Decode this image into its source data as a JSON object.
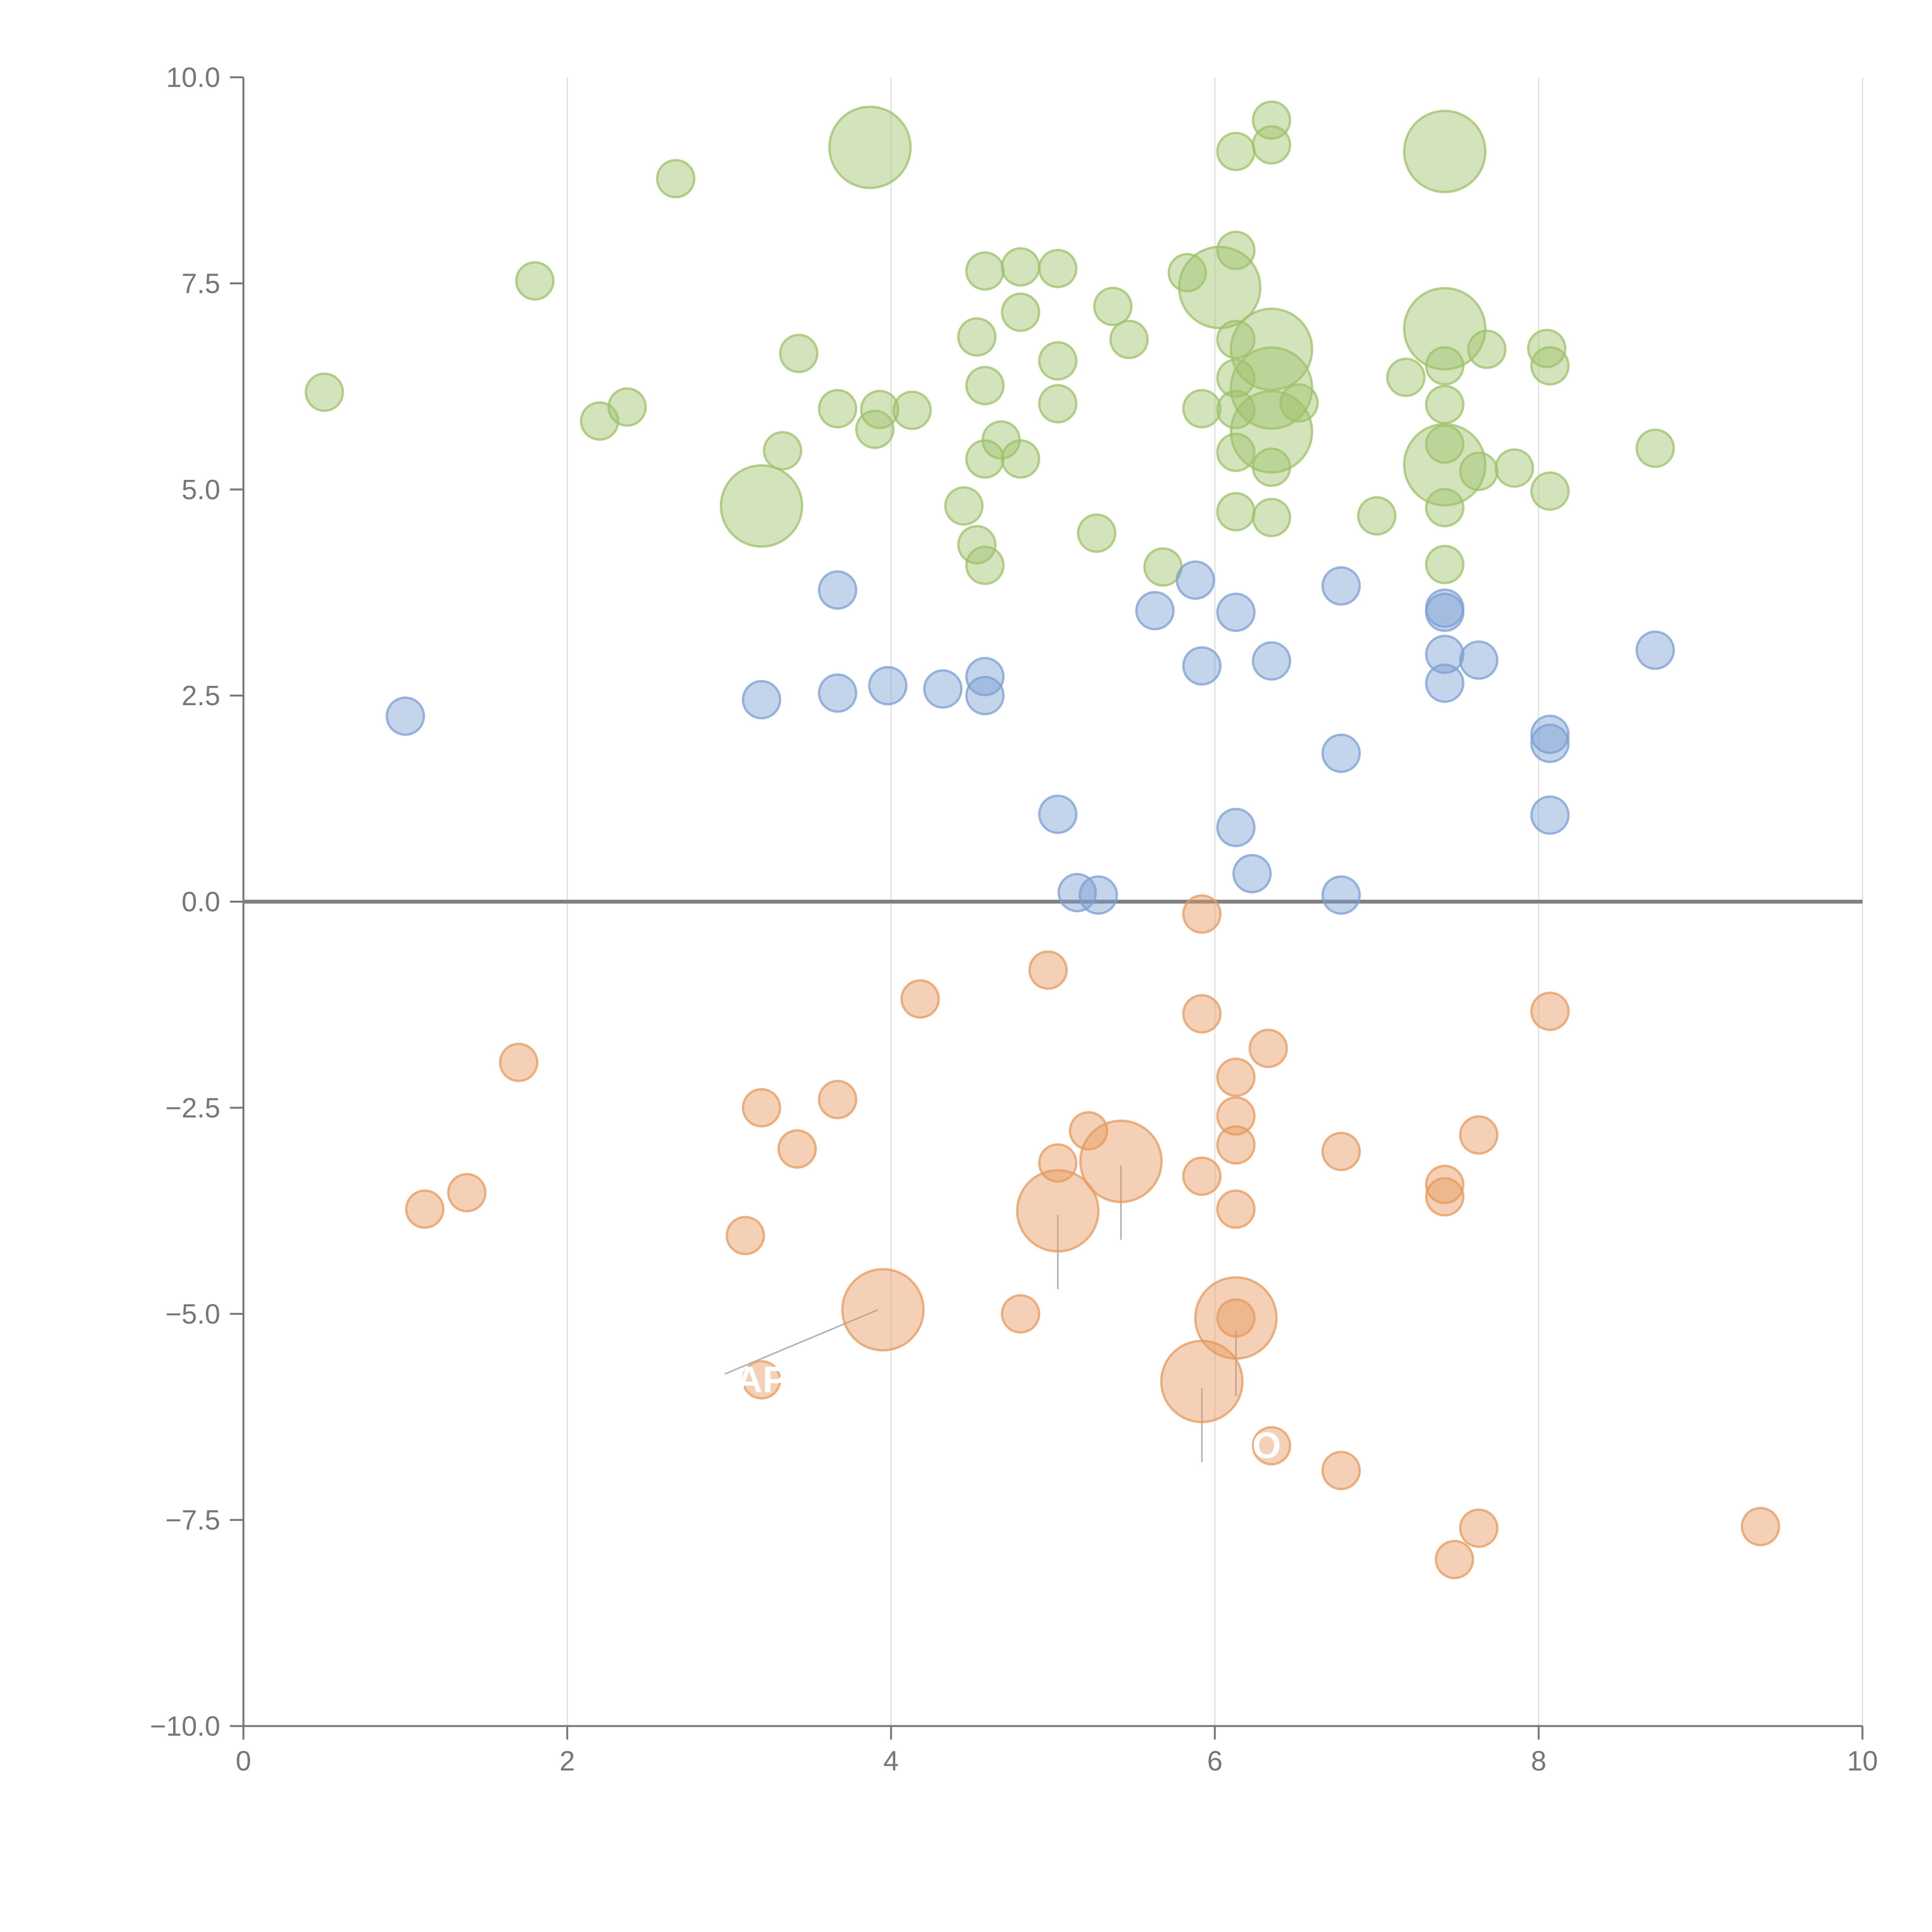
{
  "chart_data": {
    "type": "scatter",
    "title": "",
    "xlabel": "",
    "ylabel": "",
    "xlim": [
      0,
      10
    ],
    "ylim": [
      -10,
      10
    ],
    "grid": "vertical",
    "x_ticks": [
      "0",
      "2",
      "4",
      "6",
      "8",
      "10"
    ],
    "y_ticks": [
      "10.0",
      "7.5",
      "5.0",
      "2.5",
      "0.0",
      "−2.5",
      "−5.0",
      "−7.5",
      "−10.0"
    ],
    "colors": {
      "green": "#9dc26a",
      "blue": "#7c9fd3",
      "orange": "#e69a5e",
      "zero_line": "#7f7f7f",
      "axis": "#777777",
      "grid": "#dddddd"
    },
    "series": [
      {
        "name": "green",
        "color": "#9dc26a",
        "points": [
          {
            "x": 0.5,
            "y": 6.18
          },
          {
            "x": 1.8,
            "y": 7.53
          },
          {
            "x": 2.2,
            "y": 5.83
          },
          {
            "x": 2.37,
            "y": 6.0
          },
          {
            "x": 2.67,
            "y": 8.77
          },
          {
            "x": 3.2,
            "y": 4.8,
            "size": "large"
          },
          {
            "x": 3.33,
            "y": 5.47
          },
          {
            "x": 3.43,
            "y": 6.65
          },
          {
            "x": 3.67,
            "y": 5.98
          },
          {
            "x": 3.87,
            "y": 9.15,
            "size": "large"
          },
          {
            "x": 3.9,
            "y": 5.73
          },
          {
            "x": 3.93,
            "y": 5.97
          },
          {
            "x": 4.13,
            "y": 5.96
          },
          {
            "x": 4.45,
            "y": 4.8
          },
          {
            "x": 4.53,
            "y": 6.85
          },
          {
            "x": 4.53,
            "y": 4.33
          },
          {
            "x": 4.58,
            "y": 7.65
          },
          {
            "x": 4.58,
            "y": 6.26
          },
          {
            "x": 4.58,
            "y": 5.37
          },
          {
            "x": 4.58,
            "y": 4.08
          },
          {
            "x": 4.68,
            "y": 5.6
          },
          {
            "x": 4.8,
            "y": 7.7
          },
          {
            "x": 4.8,
            "y": 7.15
          },
          {
            "x": 4.8,
            "y": 5.37
          },
          {
            "x": 5.03,
            "y": 7.68
          },
          {
            "x": 5.03,
            "y": 6.56
          },
          {
            "x": 5.03,
            "y": 6.04
          },
          {
            "x": 5.27,
            "y": 4.47
          },
          {
            "x": 5.37,
            "y": 7.22
          },
          {
            "x": 5.47,
            "y": 6.82
          },
          {
            "x": 5.68,
            "y": 4.06
          },
          {
            "x": 5.83,
            "y": 7.63
          },
          {
            "x": 5.92,
            "y": 5.98
          },
          {
            "x": 6.03,
            "y": 7.45,
            "size": "large"
          },
          {
            "x": 6.13,
            "y": 9.1
          },
          {
            "x": 6.13,
            "y": 7.9
          },
          {
            "x": 6.13,
            "y": 6.82
          },
          {
            "x": 6.13,
            "y": 6.35
          },
          {
            "x": 6.13,
            "y": 5.97
          },
          {
            "x": 6.13,
            "y": 5.45
          },
          {
            "x": 6.13,
            "y": 4.73
          },
          {
            "x": 6.35,
            "y": 9.48
          },
          {
            "x": 6.35,
            "y": 9.18
          },
          {
            "x": 6.35,
            "y": 6.7,
            "size": "large"
          },
          {
            "x": 6.35,
            "y": 6.23,
            "size": "large"
          },
          {
            "x": 6.35,
            "y": 5.7,
            "size": "large"
          },
          {
            "x": 6.35,
            "y": 5.27
          },
          {
            "x": 6.35,
            "y": 4.66
          },
          {
            "x": 6.52,
            "y": 6.05
          },
          {
            "x": 7.0,
            "y": 4.68
          },
          {
            "x": 7.18,
            "y": 6.36
          },
          {
            "x": 7.42,
            "y": 9.1,
            "size": "large"
          },
          {
            "x": 7.42,
            "y": 6.95,
            "size": "large"
          },
          {
            "x": 7.42,
            "y": 6.5
          },
          {
            "x": 7.42,
            "y": 6.03
          },
          {
            "x": 7.42,
            "y": 5.55
          },
          {
            "x": 7.42,
            "y": 5.3,
            "size": "large"
          },
          {
            "x": 7.42,
            "y": 4.78
          },
          {
            "x": 7.42,
            "y": 4.09
          },
          {
            "x": 7.63,
            "y": 5.22
          },
          {
            "x": 7.68,
            "y": 6.7
          },
          {
            "x": 7.85,
            "y": 5.26
          },
          {
            "x": 8.05,
            "y": 6.71
          },
          {
            "x": 8.07,
            "y": 6.5
          },
          {
            "x": 8.07,
            "y": 4.98
          },
          {
            "x": 8.72,
            "y": 5.5
          }
        ]
      },
      {
        "name": "blue",
        "color": "#7c9fd3",
        "points": [
          {
            "x": 1.0,
            "y": 2.25
          },
          {
            "x": 3.2,
            "y": 2.45
          },
          {
            "x": 3.67,
            "y": 3.78
          },
          {
            "x": 3.67,
            "y": 2.53
          },
          {
            "x": 3.98,
            "y": 2.62
          },
          {
            "x": 4.32,
            "y": 2.58
          },
          {
            "x": 4.58,
            "y": 2.73
          },
          {
            "x": 4.58,
            "y": 2.5
          },
          {
            "x": 5.03,
            "y": 1.06
          },
          {
            "x": 5.15,
            "y": 0.11
          },
          {
            "x": 5.28,
            "y": 0.08
          },
          {
            "x": 5.63,
            "y": 3.53
          },
          {
            "x": 5.88,
            "y": 3.9
          },
          {
            "x": 5.92,
            "y": 2.86
          },
          {
            "x": 6.13,
            "y": 3.51
          },
          {
            "x": 6.13,
            "y": 0.9
          },
          {
            "x": 6.23,
            "y": 0.34
          },
          {
            "x": 6.35,
            "y": 2.92
          },
          {
            "x": 6.78,
            "y": 3.83
          },
          {
            "x": 6.78,
            "y": 1.8
          },
          {
            "x": 6.78,
            "y": 0.08
          },
          {
            "x": 7.42,
            "y": 3.56
          },
          {
            "x": 7.42,
            "y": 3.51
          },
          {
            "x": 7.42,
            "y": 3.0
          },
          {
            "x": 7.42,
            "y": 2.65
          },
          {
            "x": 7.63,
            "y": 2.93
          },
          {
            "x": 8.07,
            "y": 2.03
          },
          {
            "x": 8.07,
            "y": 1.92
          },
          {
            "x": 8.07,
            "y": 1.05
          },
          {
            "x": 8.72,
            "y": 3.05
          }
        ]
      },
      {
        "name": "orange",
        "color": "#e69a5e",
        "points": [
          {
            "x": 1.12,
            "y": -3.73
          },
          {
            "x": 1.38,
            "y": -3.53
          },
          {
            "x": 1.7,
            "y": -1.95
          },
          {
            "x": 3.1,
            "y": -4.05
          },
          {
            "x": 3.2,
            "y": -2.5
          },
          {
            "x": 3.2,
            "y": -5.8
          },
          {
            "x": 3.42,
            "y": -3.0
          },
          {
            "x": 3.67,
            "y": -2.4
          },
          {
            "x": 3.95,
            "y": -4.95,
            "size": "large"
          },
          {
            "x": 4.18,
            "y": -1.18
          },
          {
            "x": 4.8,
            "y": -5.0
          },
          {
            "x": 4.97,
            "y": -0.83
          },
          {
            "x": 5.03,
            "y": -3.17
          },
          {
            "x": 5.03,
            "y": -3.75,
            "size": "large"
          },
          {
            "x": 5.22,
            "y": -2.78
          },
          {
            "x": 5.42,
            "y": -3.15,
            "size": "large"
          },
          {
            "x": 5.92,
            "y": -0.15
          },
          {
            "x": 5.92,
            "y": -1.36
          },
          {
            "x": 5.92,
            "y": -3.33
          },
          {
            "x": 5.92,
            "y": -5.82,
            "size": "large"
          },
          {
            "x": 6.13,
            "y": -2.13
          },
          {
            "x": 6.13,
            "y": -2.6
          },
          {
            "x": 6.13,
            "y": -2.95
          },
          {
            "x": 6.13,
            "y": -3.73
          },
          {
            "x": 6.13,
            "y": -5.05,
            "size": "large"
          },
          {
            "x": 6.13,
            "y": -5.05
          },
          {
            "x": 6.33,
            "y": -1.78
          },
          {
            "x": 6.35,
            "y": -6.6
          },
          {
            "x": 6.78,
            "y": -3.03
          },
          {
            "x": 6.78,
            "y": -6.9
          },
          {
            "x": 7.42,
            "y": -3.43
          },
          {
            "x": 7.42,
            "y": -3.58
          },
          {
            "x": 7.48,
            "y": -7.98
          },
          {
            "x": 7.63,
            "y": -2.83
          },
          {
            "x": 7.63,
            "y": -7.6
          },
          {
            "x": 8.07,
            "y": -1.33
          },
          {
            "x": 9.37,
            "y": -7.58
          }
        ]
      }
    ],
    "annotations": [
      {
        "text": "AP",
        "x": 3.2,
        "y": -5.8,
        "from_x": 3.92,
        "from_y": -4.95
      },
      {
        "text": "O",
        "x": 6.32,
        "y": -6.6
      }
    ]
  }
}
